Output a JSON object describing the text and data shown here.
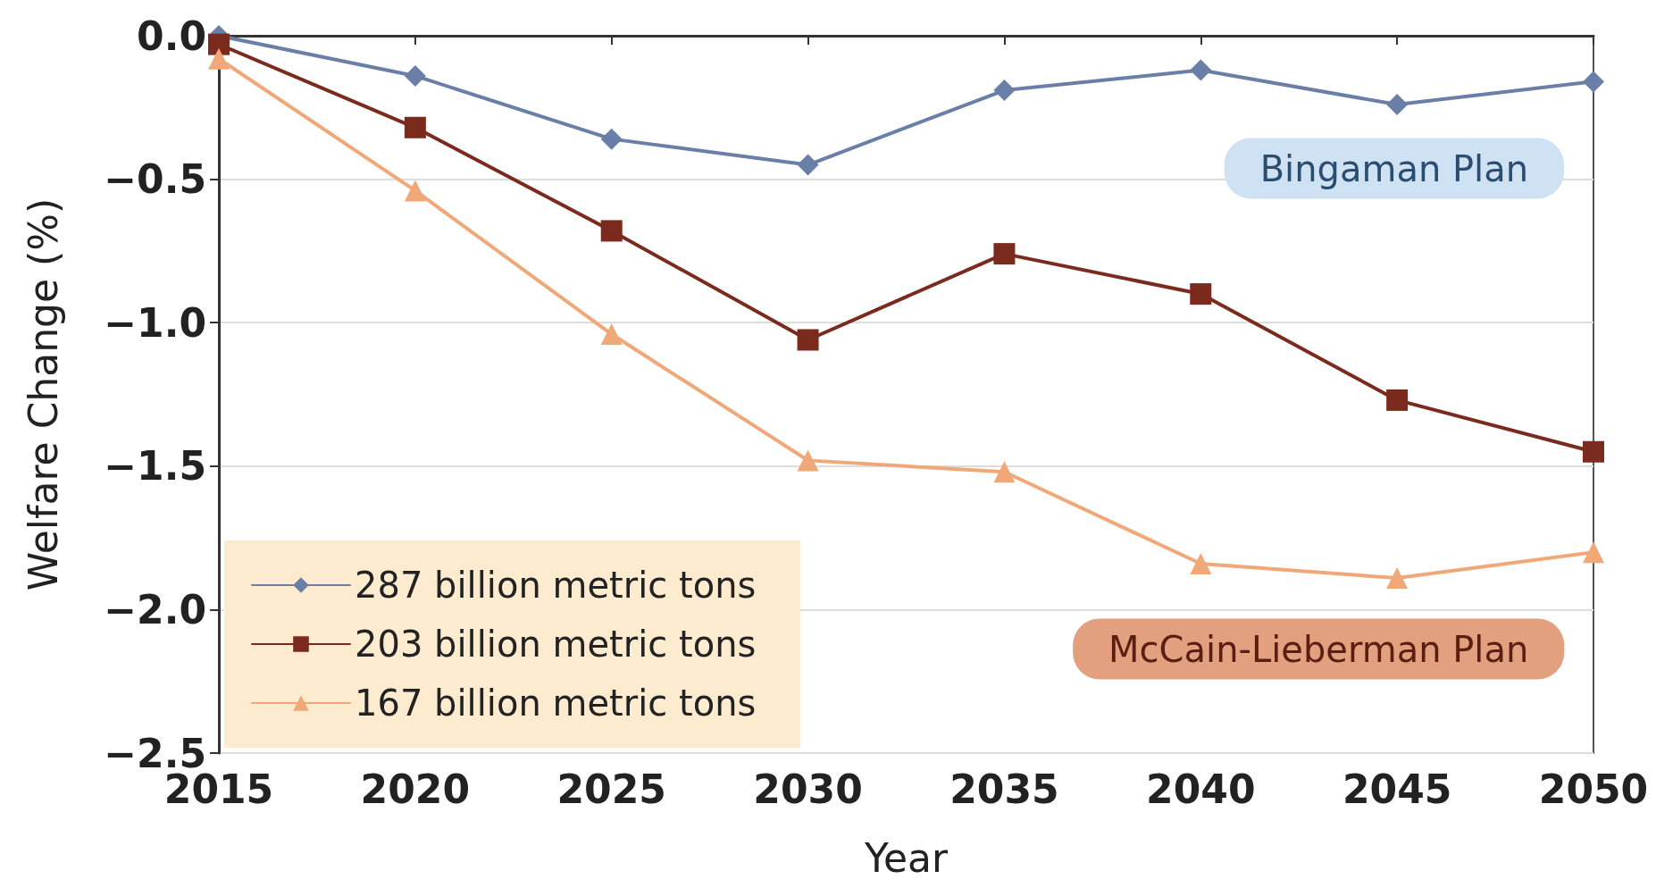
{
  "chart_data": {
    "type": "line",
    "xlabel": "Year",
    "ylabel": "Welfare Change (%)",
    "x": [
      2015,
      2020,
      2025,
      2030,
      2035,
      2040,
      2045,
      2050
    ],
    "series": [
      {
        "name": "287 billion metric tons",
        "color": "#6a7fa8",
        "marker": "diamond",
        "values": [
          0,
          -0.14,
          -0.36,
          -0.45,
          -0.19,
          -0.12,
          -0.24,
          -0.16
        ]
      },
      {
        "name": "203 billion metric tons",
        "color": "#7b2a1e",
        "marker": "square",
        "values": [
          -0.03,
          -0.32,
          -0.68,
          -1.06,
          -0.76,
          -0.9,
          -1.27,
          -1.45
        ]
      },
      {
        "name": "167 billion metric tons",
        "color": "#f0a878",
        "marker": "triangle",
        "values": [
          -0.08,
          -0.54,
          -1.04,
          -1.48,
          -1.52,
          -1.84,
          -1.89,
          -1.8
        ]
      }
    ],
    "xlim": [
      2015,
      2050
    ],
    "xticks": [
      2015,
      2020,
      2025,
      2030,
      2035,
      2040,
      2045,
      2050
    ],
    "ylim": [
      -2.5,
      0
    ],
    "yticks": [
      {
        "value": -2.5,
        "label": "−2.5"
      },
      {
        "value": -2,
        "label": "−2.0"
      },
      {
        "value": -1.5,
        "label": "−1.5"
      },
      {
        "value": -1,
        "label": "−1.0"
      },
      {
        "value": -0.5,
        "label": "−0.5"
      },
      {
        "value": 0,
        "label": "0.0"
      }
    ],
    "grid": "y",
    "legend": "bottom left",
    "line_style": "solid",
    "annotations": [
      "Bingaman Plan",
      "McCain-Lieberman Plan"
    ]
  }
}
